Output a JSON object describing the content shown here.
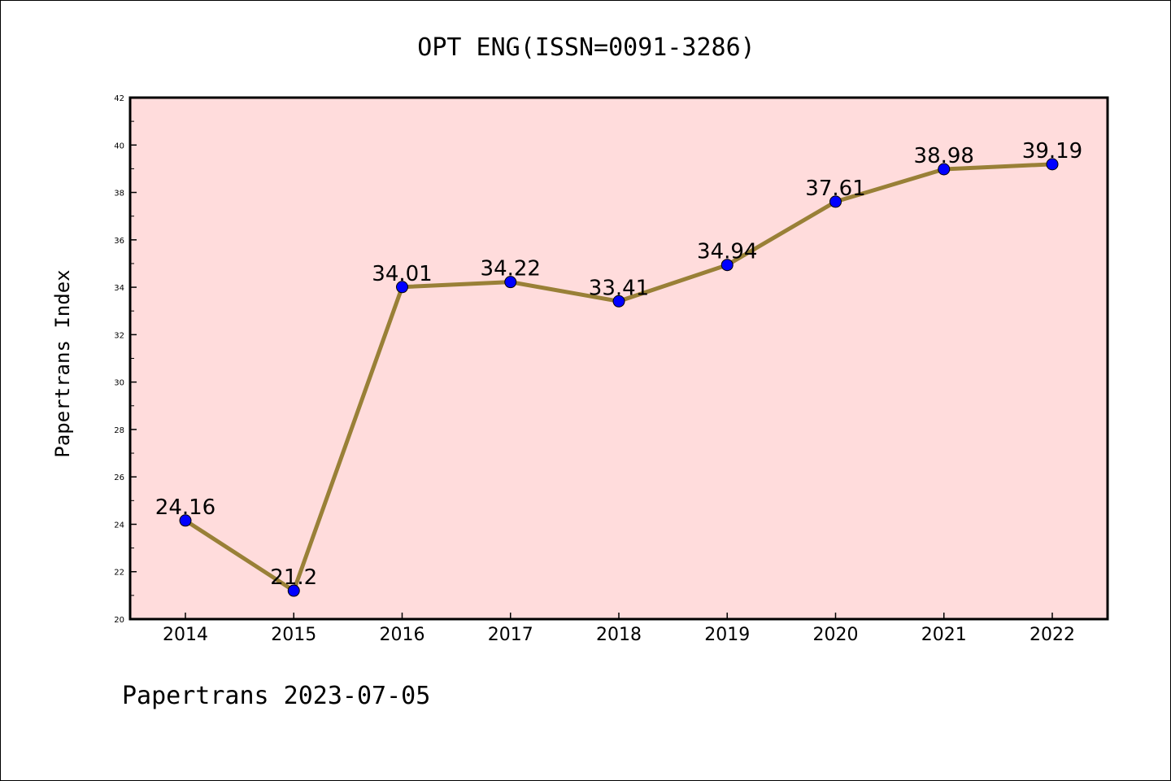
{
  "chart_data": {
    "type": "line",
    "title": "OPT ENG(ISSN=0091-3286)",
    "ylabel": "Papertrans Index",
    "xlabel": "",
    "categories": [
      "2014",
      "2015",
      "2016",
      "2017",
      "2018",
      "2019",
      "2020",
      "2021",
      "2022"
    ],
    "values": [
      24.16,
      21.2,
      34.01,
      34.22,
      33.41,
      34.94,
      37.61,
      38.98,
      39.19
    ],
    "data_labels": [
      "24.16",
      "21.2",
      "34.01",
      "34.22",
      "33.41",
      "34.94",
      "37.61",
      "38.98",
      "39.19"
    ],
    "ylim": [
      20,
      42
    ],
    "yticks": [
      "20",
      "22",
      "24",
      "26",
      "28",
      "30",
      "32",
      "34",
      "36",
      "38",
      "40",
      "42"
    ],
    "grid": false,
    "legend": "none",
    "colors": {
      "plot_background": "#ffdcdc",
      "line": "#998037",
      "marker": "#0000ff"
    }
  },
  "footer": "Papertrans 2023-07-05"
}
